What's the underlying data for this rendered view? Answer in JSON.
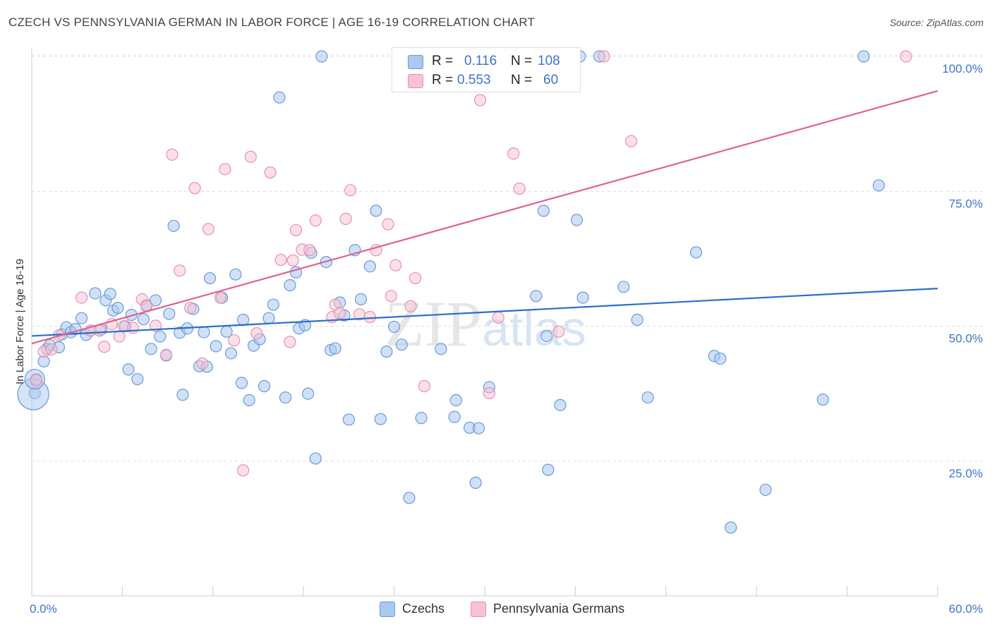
{
  "header": {
    "title": "CZECH VS PENNSYLVANIA GERMAN IN LABOR FORCE | AGE 16-19 CORRELATION CHART",
    "source": "Source: ZipAtlas.com"
  },
  "legend_box": {
    "rows": [
      {
        "r_label": "R =",
        "r_value": "0.116",
        "n_label": "N =",
        "n_value": "108"
      },
      {
        "r_label": "R =",
        "r_value": "0.553",
        "n_label": "N =",
        "n_value": "60"
      }
    ]
  },
  "bottom_legend": {
    "czechs": "Czechs",
    "pa_germans": "Pennsylvania Germans"
  },
  "watermark": "ZIPatlas",
  "colors": {
    "czech_fill": "#aac8f0",
    "czech_stroke": "#6a9ad8",
    "czech_line": "#2a6ecb",
    "pa_fill": "#f8c2d4",
    "pa_stroke": "#e890ad",
    "pa_line": "#e0628e",
    "tick": "#3d74c6"
  },
  "chart_data": {
    "type": "scatter",
    "title": "CZECH VS PENNSYLVANIA GERMAN IN LABOR FORCE | AGE 16-19 CORRELATION CHART",
    "xlabel": "",
    "ylabel": "In Labor Force | Age 16-19",
    "xlim": [
      0,
      60
    ],
    "ylim": [
      0,
      104
    ],
    "x_tick_labels": [
      "0.0%",
      "60.0%"
    ],
    "y_tick_labels": [
      "25.0%",
      "50.0%",
      "75.0%",
      "100.0%"
    ],
    "y_ticks": [
      25,
      50,
      75,
      100
    ],
    "grid": true,
    "legend_position": "top-center",
    "series": [
      {
        "name": "Czechs",
        "R": 0.116,
        "N": 108,
        "trend": {
          "x": [
            0,
            60
          ],
          "y": [
            48.2,
            57.0
          ]
        },
        "points": [
          [
            0.2,
            37.6
          ],
          [
            0.3,
            40.2
          ],
          [
            0.8,
            43.5
          ],
          [
            1.0,
            45.8
          ],
          [
            1.2,
            46.5
          ],
          [
            1.8,
            46.1
          ],
          [
            2.0,
            48.5
          ],
          [
            2.3,
            49.8
          ],
          [
            2.6,
            48.9
          ],
          [
            2.9,
            49.5
          ],
          [
            3.3,
            51.5
          ],
          [
            3.6,
            48.4
          ],
          [
            3.9,
            49.2
          ],
          [
            4.6,
            49.4
          ],
          [
            4.2,
            56.1
          ],
          [
            4.9,
            54.8
          ],
          [
            5.2,
            56.0
          ],
          [
            5.4,
            52.9
          ],
          [
            5.7,
            53.4
          ],
          [
            6.2,
            50.0
          ],
          [
            6.4,
            42.0
          ],
          [
            6.6,
            52.1
          ],
          [
            7.0,
            40.2
          ],
          [
            7.4,
            51.3
          ],
          [
            7.6,
            53.9
          ],
          [
            7.9,
            45.8
          ],
          [
            8.2,
            54.8
          ],
          [
            8.5,
            48.1
          ],
          [
            8.9,
            44.6
          ],
          [
            9.1,
            52.3
          ],
          [
            9.4,
            68.6
          ],
          [
            9.8,
            48.8
          ],
          [
            10.0,
            37.3
          ],
          [
            10.3,
            49.6
          ],
          [
            10.7,
            53.2
          ],
          [
            11.1,
            42.6
          ],
          [
            11.4,
            48.9
          ],
          [
            11.6,
            42.5
          ],
          [
            11.8,
            58.9
          ],
          [
            12.2,
            46.3
          ],
          [
            12.6,
            55.3
          ],
          [
            12.9,
            49.0
          ],
          [
            13.2,
            45.0
          ],
          [
            13.5,
            59.6
          ],
          [
            13.9,
            39.5
          ],
          [
            14.0,
            51.2
          ],
          [
            14.4,
            36.3
          ],
          [
            14.7,
            46.4
          ],
          [
            15.1,
            47.6
          ],
          [
            15.4,
            38.9
          ],
          [
            15.7,
            51.5
          ],
          [
            16.0,
            54.0
          ],
          [
            16.4,
            92.4
          ],
          [
            16.8,
            36.8
          ],
          [
            17.1,
            57.6
          ],
          [
            17.5,
            60.0
          ],
          [
            17.7,
            49.6
          ],
          [
            18.1,
            50.2
          ],
          [
            18.3,
            37.5
          ],
          [
            18.5,
            63.6
          ],
          [
            18.8,
            25.5
          ],
          [
            19.2,
            100.0
          ],
          [
            19.5,
            61.9
          ],
          [
            19.8,
            45.6
          ],
          [
            20.1,
            45.9
          ],
          [
            20.4,
            54.4
          ],
          [
            20.7,
            52.0
          ],
          [
            21.0,
            32.7
          ],
          [
            21.4,
            64.1
          ],
          [
            21.8,
            55.0
          ],
          [
            22.4,
            61.1
          ],
          [
            22.8,
            71.4
          ],
          [
            23.1,
            32.8
          ],
          [
            23.5,
            45.3
          ],
          [
            24.0,
            49.9
          ],
          [
            24.5,
            46.6
          ],
          [
            25.0,
            18.2
          ],
          [
            25.8,
            33.0
          ],
          [
            27.1,
            45.8
          ],
          [
            28.0,
            33.2
          ],
          [
            28.1,
            36.3
          ],
          [
            29.0,
            31.2
          ],
          [
            29.6,
            31.1
          ],
          [
            29.4,
            21.0
          ],
          [
            30.3,
            38.7
          ],
          [
            30.6,
            100.0
          ],
          [
            31.7,
            94.6
          ],
          [
            33.4,
            55.6
          ],
          [
            33.9,
            71.4
          ],
          [
            34.2,
            23.4
          ],
          [
            34.1,
            48.2
          ],
          [
            35.0,
            35.4
          ],
          [
            36.1,
            69.7
          ],
          [
            36.3,
            100.0
          ],
          [
            36.5,
            55.3
          ],
          [
            37.6,
            100.0
          ],
          [
            39.2,
            57.3
          ],
          [
            40.1,
            51.2
          ],
          [
            40.8,
            36.8
          ],
          [
            44.0,
            63.7
          ],
          [
            45.2,
            44.5
          ],
          [
            45.6,
            44.0
          ],
          [
            46.3,
            12.7
          ],
          [
            48.6,
            19.7
          ],
          [
            52.4,
            36.4
          ],
          [
            55.1,
            100.0
          ],
          [
            56.1,
            76.1
          ]
        ],
        "large_points": [
          [
            0.1,
            37.4
          ],
          [
            0.2,
            40.2
          ]
        ]
      },
      {
        "name": "Pennsylvania Germans",
        "R": 0.553,
        "N": 60,
        "trend": {
          "x": [
            0,
            60
          ],
          "y": [
            46.8,
            93.6
          ]
        },
        "points": [
          [
            0.3,
            40.0
          ],
          [
            0.8,
            45.3
          ],
          [
            1.3,
            45.7
          ],
          [
            1.8,
            48.3
          ],
          [
            3.3,
            55.3
          ],
          [
            3.9,
            49.2
          ],
          [
            4.5,
            49.2
          ],
          [
            4.8,
            46.2
          ],
          [
            5.3,
            50.4
          ],
          [
            5.8,
            48.1
          ],
          [
            6.1,
            50.0
          ],
          [
            6.7,
            49.7
          ],
          [
            7.3,
            55.0
          ],
          [
            7.6,
            53.7
          ],
          [
            8.2,
            50.1
          ],
          [
            8.9,
            44.7
          ],
          [
            9.3,
            81.8
          ],
          [
            9.8,
            60.3
          ],
          [
            10.5,
            53.4
          ],
          [
            10.8,
            75.6
          ],
          [
            11.3,
            43.1
          ],
          [
            11.7,
            68.0
          ],
          [
            12.5,
            55.3
          ],
          [
            12.8,
            79.1
          ],
          [
            13.4,
            47.4
          ],
          [
            14.0,
            23.3
          ],
          [
            14.5,
            81.4
          ],
          [
            14.9,
            48.7
          ],
          [
            15.8,
            78.5
          ],
          [
            16.5,
            62.3
          ],
          [
            17.1,
            47.1
          ],
          [
            17.3,
            62.2
          ],
          [
            17.5,
            67.8
          ],
          [
            17.9,
            64.2
          ],
          [
            18.4,
            64.1
          ],
          [
            18.8,
            69.6
          ],
          [
            19.9,
            51.7
          ],
          [
            20.1,
            54.0
          ],
          [
            20.4,
            52.4
          ],
          [
            20.8,
            69.9
          ],
          [
            21.1,
            75.2
          ],
          [
            21.7,
            52.2
          ],
          [
            22.4,
            51.7
          ],
          [
            22.8,
            64.1
          ],
          [
            23.6,
            68.9
          ],
          [
            23.8,
            55.6
          ],
          [
            24.1,
            61.3
          ],
          [
            25.1,
            53.7
          ],
          [
            25.4,
            58.9
          ],
          [
            26.0,
            38.9
          ],
          [
            28.1,
            100.0
          ],
          [
            29.7,
            91.9
          ],
          [
            30.3,
            37.6
          ],
          [
            30.9,
            51.6
          ],
          [
            31.9,
            82.0
          ],
          [
            32.3,
            75.5
          ],
          [
            34.9,
            49.0
          ],
          [
            37.9,
            100.0
          ],
          [
            39.7,
            84.3
          ],
          [
            57.9,
            100.0
          ]
        ]
      }
    ]
  }
}
